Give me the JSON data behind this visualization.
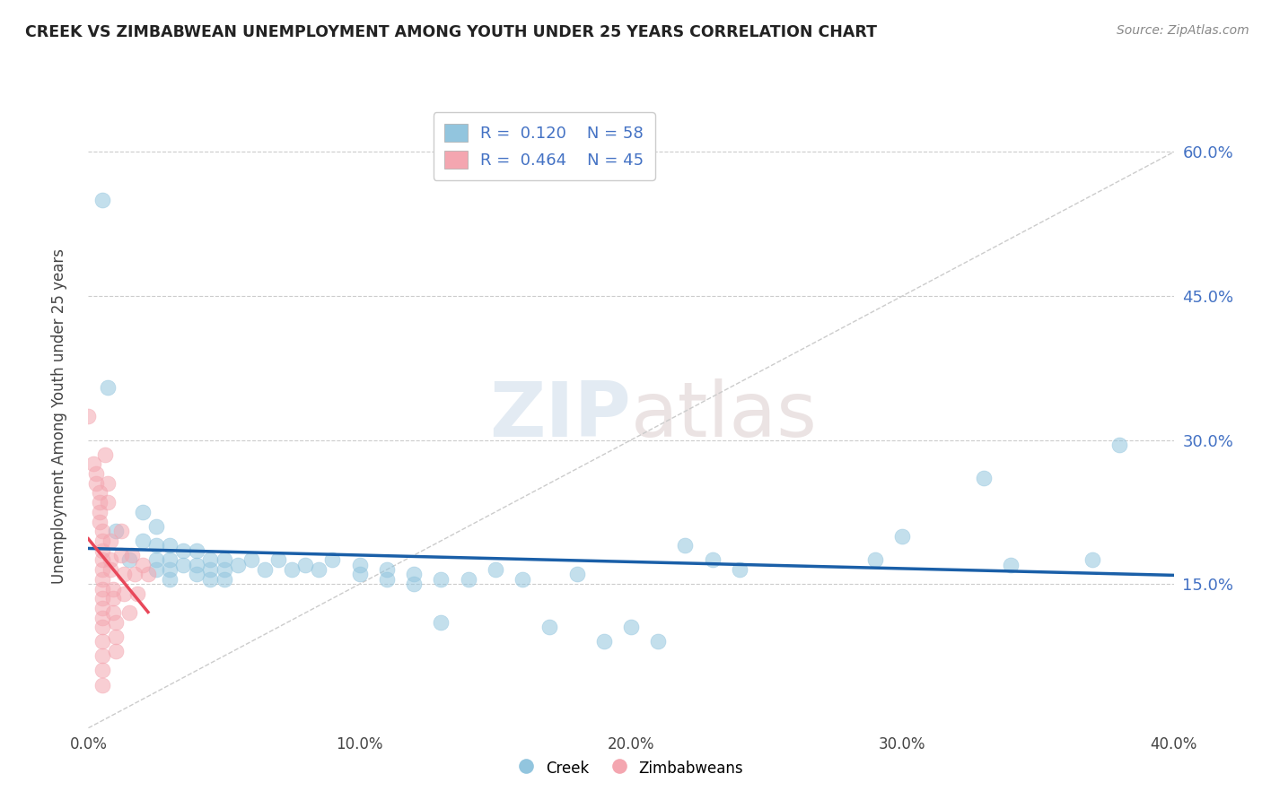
{
  "title": "CREEK VS ZIMBABWEAN UNEMPLOYMENT AMONG YOUTH UNDER 25 YEARS CORRELATION CHART",
  "source": "Source: ZipAtlas.com",
  "ylabel": "Unemployment Among Youth under 25 years",
  "xlim": [
    0.0,
    0.4
  ],
  "ylim": [
    0.0,
    0.65
  ],
  "xticks": [
    0.0,
    0.1,
    0.2,
    0.3,
    0.4
  ],
  "xticklabels": [
    "0.0%",
    "10.0%",
    "20.0%",
    "30.0%",
    "40.0%"
  ],
  "yticks": [
    0.15,
    0.3,
    0.45,
    0.6
  ],
  "yticklabels": [
    "15.0%",
    "30.0%",
    "45.0%",
    "60.0%"
  ],
  "grid_color": "#cccccc",
  "background_color": "#ffffff",
  "watermark_zip": "ZIP",
  "watermark_atlas": "atlas",
  "legend_r_creek": "0.120",
  "legend_n_creek": "58",
  "legend_r_zimb": "0.464",
  "legend_n_zimb": "45",
  "creek_color": "#92c5de",
  "zimb_color": "#f4a6b0",
  "creek_line_color": "#1a5fa8",
  "zimb_line_color": "#e8485a",
  "ytick_color": "#4472c4",
  "xtick_color": "#333333",
  "creek_scatter": [
    [
      0.005,
      0.55
    ],
    [
      0.007,
      0.355
    ],
    [
      0.01,
      0.205
    ],
    [
      0.015,
      0.175
    ],
    [
      0.02,
      0.225
    ],
    [
      0.02,
      0.195
    ],
    [
      0.025,
      0.21
    ],
    [
      0.025,
      0.19
    ],
    [
      0.025,
      0.175
    ],
    [
      0.025,
      0.165
    ],
    [
      0.03,
      0.19
    ],
    [
      0.03,
      0.175
    ],
    [
      0.03,
      0.165
    ],
    [
      0.03,
      0.155
    ],
    [
      0.035,
      0.185
    ],
    [
      0.035,
      0.17
    ],
    [
      0.04,
      0.185
    ],
    [
      0.04,
      0.17
    ],
    [
      0.04,
      0.16
    ],
    [
      0.045,
      0.175
    ],
    [
      0.045,
      0.165
    ],
    [
      0.045,
      0.155
    ],
    [
      0.05,
      0.175
    ],
    [
      0.05,
      0.165
    ],
    [
      0.05,
      0.155
    ],
    [
      0.055,
      0.17
    ],
    [
      0.06,
      0.175
    ],
    [
      0.065,
      0.165
    ],
    [
      0.07,
      0.175
    ],
    [
      0.075,
      0.165
    ],
    [
      0.08,
      0.17
    ],
    [
      0.085,
      0.165
    ],
    [
      0.09,
      0.175
    ],
    [
      0.1,
      0.17
    ],
    [
      0.1,
      0.16
    ],
    [
      0.11,
      0.165
    ],
    [
      0.11,
      0.155
    ],
    [
      0.12,
      0.16
    ],
    [
      0.12,
      0.15
    ],
    [
      0.13,
      0.155
    ],
    [
      0.13,
      0.11
    ],
    [
      0.14,
      0.155
    ],
    [
      0.15,
      0.165
    ],
    [
      0.16,
      0.155
    ],
    [
      0.17,
      0.105
    ],
    [
      0.18,
      0.16
    ],
    [
      0.19,
      0.09
    ],
    [
      0.2,
      0.105
    ],
    [
      0.21,
      0.09
    ],
    [
      0.22,
      0.19
    ],
    [
      0.23,
      0.175
    ],
    [
      0.24,
      0.165
    ],
    [
      0.29,
      0.175
    ],
    [
      0.3,
      0.2
    ],
    [
      0.33,
      0.26
    ],
    [
      0.34,
      0.17
    ],
    [
      0.37,
      0.175
    ],
    [
      0.38,
      0.295
    ]
  ],
  "zimb_scatter": [
    [
      0.0,
      0.325
    ],
    [
      0.002,
      0.275
    ],
    [
      0.003,
      0.265
    ],
    [
      0.003,
      0.255
    ],
    [
      0.004,
      0.245
    ],
    [
      0.004,
      0.235
    ],
    [
      0.004,
      0.225
    ],
    [
      0.004,
      0.215
    ],
    [
      0.005,
      0.205
    ],
    [
      0.005,
      0.195
    ],
    [
      0.005,
      0.185
    ],
    [
      0.005,
      0.175
    ],
    [
      0.005,
      0.165
    ],
    [
      0.005,
      0.155
    ],
    [
      0.005,
      0.145
    ],
    [
      0.005,
      0.135
    ],
    [
      0.005,
      0.125
    ],
    [
      0.005,
      0.115
    ],
    [
      0.005,
      0.105
    ],
    [
      0.005,
      0.09
    ],
    [
      0.005,
      0.075
    ],
    [
      0.005,
      0.06
    ],
    [
      0.005,
      0.045
    ],
    [
      0.006,
      0.285
    ],
    [
      0.007,
      0.255
    ],
    [
      0.007,
      0.235
    ],
    [
      0.008,
      0.195
    ],
    [
      0.008,
      0.175
    ],
    [
      0.008,
      0.165
    ],
    [
      0.009,
      0.145
    ],
    [
      0.009,
      0.135
    ],
    [
      0.009,
      0.12
    ],
    [
      0.01,
      0.11
    ],
    [
      0.01,
      0.095
    ],
    [
      0.01,
      0.08
    ],
    [
      0.012,
      0.205
    ],
    [
      0.012,
      0.18
    ],
    [
      0.013,
      0.16
    ],
    [
      0.013,
      0.14
    ],
    [
      0.015,
      0.12
    ],
    [
      0.016,
      0.18
    ],
    [
      0.017,
      0.16
    ],
    [
      0.018,
      0.14
    ],
    [
      0.02,
      0.17
    ],
    [
      0.022,
      0.16
    ]
  ]
}
